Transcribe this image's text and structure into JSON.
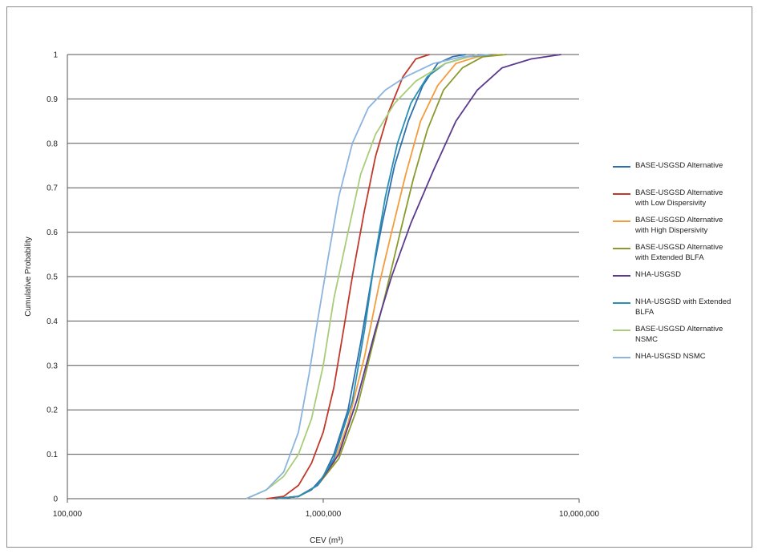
{
  "chart_data": {
    "type": "line",
    "title": "",
    "xlabel": "CEV (m³)",
    "ylabel": "Cumulative Probability",
    "xscale": "log",
    "xlim": [
      100000,
      10000000
    ],
    "ylim": [
      0,
      1
    ],
    "x_tick_labels": [
      "100,000",
      "1,000,000",
      "10,000,000"
    ],
    "x_tick_values": [
      100000,
      1000000,
      10000000
    ],
    "y_tick_labels": [
      "0",
      "0.1",
      "0.2",
      "0.3",
      "0.4",
      "0.5",
      "0.6",
      "0.7",
      "0.8",
      "0.9",
      "1"
    ],
    "y_tick_values": [
      0,
      0.1,
      0.2,
      0.3,
      0.4,
      0.5,
      0.6,
      0.7,
      0.8,
      0.9,
      1
    ],
    "grid": "horizontal",
    "legend_position": "right",
    "series": [
      {
        "name": "BASE-USGSD Alternative",
        "color": "#2e6fae",
        "points": [
          [
            650000,
            0
          ],
          [
            800000,
            0.005
          ],
          [
            900000,
            0.02
          ],
          [
            1000000,
            0.05
          ],
          [
            1100000,
            0.1
          ],
          [
            1250000,
            0.2
          ],
          [
            1400000,
            0.35
          ],
          [
            1550000,
            0.5
          ],
          [
            1700000,
            0.62
          ],
          [
            1900000,
            0.75
          ],
          [
            2150000,
            0.85
          ],
          [
            2450000,
            0.93
          ],
          [
            2800000,
            0.98
          ],
          [
            3200000,
            0.995
          ],
          [
            3600000,
            1
          ]
        ]
      },
      {
        "name": "BASE-USGSD Alternative\nwith Low Dispersivity",
        "color": "#c0392b",
        "points": [
          [
            600000,
            0
          ],
          [
            700000,
            0.005
          ],
          [
            800000,
            0.03
          ],
          [
            900000,
            0.08
          ],
          [
            1000000,
            0.15
          ],
          [
            1100000,
            0.25
          ],
          [
            1200000,
            0.38
          ],
          [
            1300000,
            0.5
          ],
          [
            1450000,
            0.65
          ],
          [
            1600000,
            0.77
          ],
          [
            1800000,
            0.87
          ],
          [
            2050000,
            0.95
          ],
          [
            2300000,
            0.99
          ],
          [
            2600000,
            1
          ]
        ]
      },
      {
        "name": "BASE-USGSD Alternative\nwith High Dispersivity",
        "color": "#f39c3c",
        "points": [
          [
            650000,
            0
          ],
          [
            800000,
            0.005
          ],
          [
            950000,
            0.03
          ],
          [
            1100000,
            0.08
          ],
          [
            1250000,
            0.17
          ],
          [
            1450000,
            0.32
          ],
          [
            1650000,
            0.48
          ],
          [
            1850000,
            0.6
          ],
          [
            2100000,
            0.73
          ],
          [
            2400000,
            0.85
          ],
          [
            2800000,
            0.93
          ],
          [
            3300000,
            0.98
          ],
          [
            4000000,
            0.995
          ],
          [
            5000000,
            1
          ]
        ]
      },
      {
        "name": "BASE-USGSD Alternative\nwith Extended BLFA",
        "color": "#8a9a2e",
        "points": [
          [
            650000,
            0
          ],
          [
            800000,
            0.005
          ],
          [
            950000,
            0.03
          ],
          [
            1150000,
            0.09
          ],
          [
            1350000,
            0.2
          ],
          [
            1550000,
            0.34
          ],
          [
            1750000,
            0.46
          ],
          [
            2000000,
            0.6
          ],
          [
            2250000,
            0.72
          ],
          [
            2550000,
            0.83
          ],
          [
            2950000,
            0.92
          ],
          [
            3500000,
            0.97
          ],
          [
            4200000,
            0.995
          ],
          [
            5200000,
            1
          ]
        ]
      },
      {
        "name": "NHA-USGSD",
        "color": "#5b3a8e",
        "points": [
          [
            650000,
            0
          ],
          [
            800000,
            0.005
          ],
          [
            950000,
            0.03
          ],
          [
            1150000,
            0.1
          ],
          [
            1350000,
            0.22
          ],
          [
            1600000,
            0.38
          ],
          [
            1850000,
            0.5
          ],
          [
            2200000,
            0.62
          ],
          [
            2700000,
            0.74
          ],
          [
            3300000,
            0.85
          ],
          [
            4000000,
            0.92
          ],
          [
            5000000,
            0.97
          ],
          [
            6500000,
            0.99
          ],
          [
            8500000,
            1
          ]
        ]
      },
      {
        "name": "NHA-USGSD with Extended\nBLFA",
        "color": "#2a8fb5",
        "points": [
          [
            650000,
            0
          ],
          [
            800000,
            0.005
          ],
          [
            950000,
            0.03
          ],
          [
            1100000,
            0.09
          ],
          [
            1300000,
            0.22
          ],
          [
            1450000,
            0.38
          ],
          [
            1600000,
            0.55
          ],
          [
            1750000,
            0.68
          ],
          [
            1950000,
            0.8
          ],
          [
            2200000,
            0.89
          ],
          [
            2550000,
            0.95
          ],
          [
            3000000,
            0.98
          ],
          [
            3700000,
            0.995
          ],
          [
            4500000,
            1
          ]
        ]
      },
      {
        "name": "BASE-USGSD Alternative\nNSMC",
        "color": "#a9cc7a",
        "points": [
          [
            500000,
            0
          ],
          [
            600000,
            0.02
          ],
          [
            700000,
            0.05
          ],
          [
            800000,
            0.1
          ],
          [
            900000,
            0.18
          ],
          [
            1000000,
            0.3
          ],
          [
            1100000,
            0.45
          ],
          [
            1250000,
            0.6
          ],
          [
            1400000,
            0.73
          ],
          [
            1600000,
            0.82
          ],
          [
            1900000,
            0.89
          ],
          [
            2300000,
            0.94
          ],
          [
            3000000,
            0.98
          ],
          [
            4000000,
            1
          ]
        ]
      },
      {
        "name": "NHA-USGSD NSMC",
        "color": "#8bb4de",
        "points": [
          [
            500000,
            0
          ],
          [
            600000,
            0.02
          ],
          [
            700000,
            0.06
          ],
          [
            800000,
            0.15
          ],
          [
            880000,
            0.28
          ],
          [
            950000,
            0.4
          ],
          [
            1050000,
            0.55
          ],
          [
            1150000,
            0.68
          ],
          [
            1300000,
            0.8
          ],
          [
            1500000,
            0.88
          ],
          [
            1750000,
            0.92
          ],
          [
            2100000,
            0.95
          ],
          [
            2700000,
            0.98
          ],
          [
            3500000,
            0.995
          ],
          [
            4500000,
            1
          ]
        ]
      }
    ]
  }
}
